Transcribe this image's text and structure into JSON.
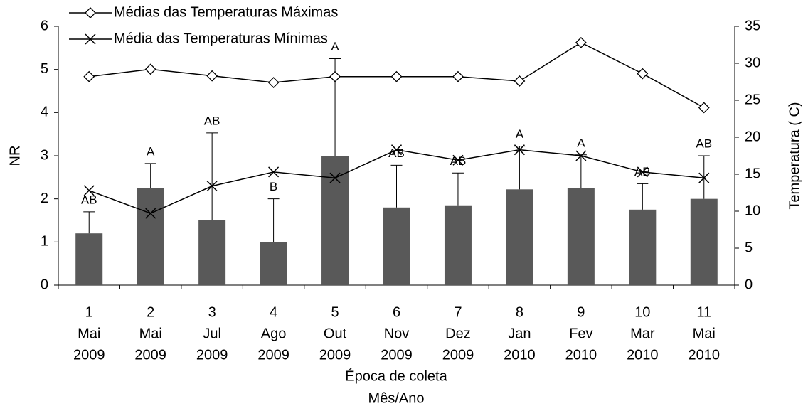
{
  "chart_data": {
    "type": "bar",
    "categories": [
      [
        "1",
        "Mai",
        "2009"
      ],
      [
        "2",
        "Mai",
        "2009"
      ],
      [
        "3",
        "Jul",
        "2009"
      ],
      [
        "4",
        "Ago",
        "2009"
      ],
      [
        "5",
        "Out",
        "2009"
      ],
      [
        "6",
        "Nov",
        "2009"
      ],
      [
        "7",
        "Dez",
        "2009"
      ],
      [
        "8",
        "Jan",
        "2010"
      ],
      [
        "9",
        "Fev",
        "2010"
      ],
      [
        "10",
        "Mar",
        "2010"
      ],
      [
        "11",
        "Mai",
        "2010"
      ]
    ],
    "values": [
      1.2,
      2.25,
      1.5,
      1.0,
      3.0,
      1.8,
      1.85,
      2.22,
      2.25,
      1.75,
      2.0
    ],
    "errors": [
      0.5,
      0.57,
      2.03,
      1.0,
      2.25,
      0.98,
      0.75,
      1.0,
      0.77,
      0.6,
      1.0
    ],
    "annotations": [
      "AB",
      "A",
      "AB",
      "B",
      "A",
      "AB",
      "AB",
      "A",
      "A",
      "AB",
      "AB"
    ],
    "color": "#595959",
    "series": [
      {
        "name": "Médias das Temperaturas Máximas",
        "color": "#000000",
        "marker": "diamond",
        "axis": "y2",
        "values": [
          28.2,
          29.2,
          28.3,
          27.4,
          28.2,
          28.2,
          28.2,
          27.6,
          32.8,
          28.6,
          24.0
        ]
      },
      {
        "name": "Média das Temperaturas Mínimas",
        "color": "#000000",
        "marker": "x",
        "axis": "y2",
        "values": [
          12.8,
          9.7,
          13.4,
          15.3,
          14.5,
          18.3,
          16.9,
          18.3,
          17.5,
          15.3,
          14.5
        ]
      }
    ],
    "xlabel": [
      "Época de coleta",
      "Mês/Ano"
    ],
    "ylabel": "NR",
    "y2label": "Temperatura ( C)",
    "ylim": [
      0,
      6
    ],
    "yticks": [
      0,
      1,
      2,
      3,
      4,
      5,
      6
    ],
    "y2lim": [
      0,
      35
    ],
    "y2ticks": [
      0,
      5,
      10,
      15,
      20,
      25,
      30,
      35
    ],
    "legend": "top-left",
    "grid": false
  }
}
